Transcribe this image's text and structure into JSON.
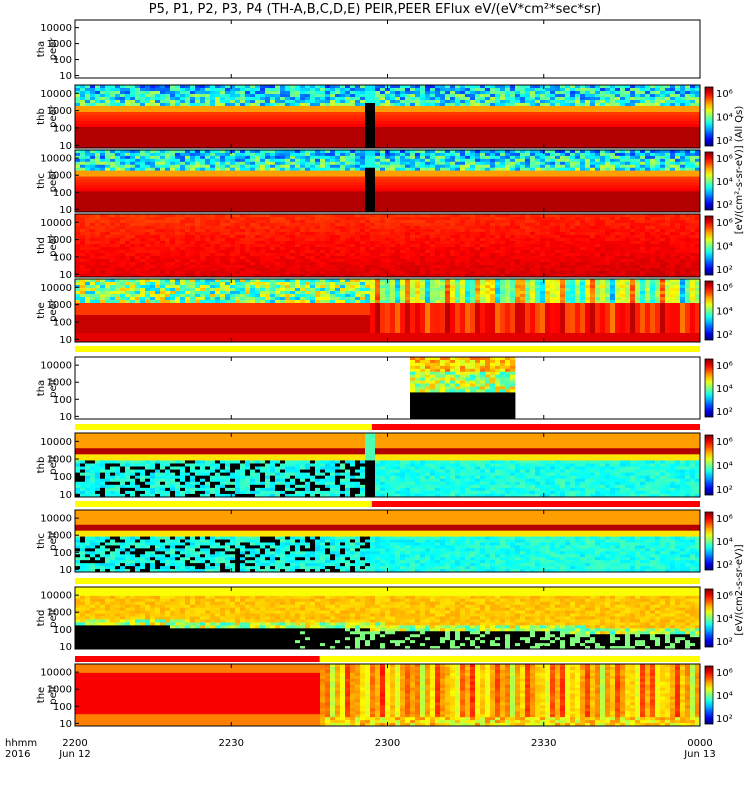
{
  "chart_data": {
    "type": "heatmap",
    "title": "P5, P1, P2, P3, P4 (TH-A,B,C,D,E) PEIR,PEER EFlux eV/(eV*cm²*sec*sr)",
    "x_axis": {
      "row1_label": "hhmm",
      "row2_label": "2016",
      "ticks": [
        {
          "x": 0,
          "hhmm": "2200",
          "date": "Jun 12"
        },
        {
          "x": 30,
          "hhmm": "2230",
          "date": ""
        },
        {
          "x": 60,
          "hhmm": "2300",
          "date": ""
        },
        {
          "x": 90,
          "hhmm": "2330",
          "date": ""
        },
        {
          "x": 120,
          "hhmm": "0000",
          "date": "Jun 13"
        }
      ],
      "xlim": [
        0,
        120
      ]
    },
    "y_axis": {
      "scale": "log",
      "ylim": [
        7,
        30000
      ],
      "ticks": [
        "10000",
        "1000",
        "100",
        "10"
      ]
    },
    "colorbar": {
      "scale": "log",
      "ticks": [
        "10⁶",
        "10⁴",
        "10²"
      ],
      "label_ions": "[eV/(cm²-s-sr-eV)] (All Qs)",
      "label_common": "[eV/(cm2-s-sr-eV)]"
    },
    "panels": [
      {
        "label": "tha\npeer",
        "kind": "empty",
        "colorbar": false
      },
      {
        "label": "thb\npeer",
        "kind": "electron",
        "dropout": [
          55.5,
          58
        ],
        "colorbar": true
      },
      {
        "label": "thc\npeer",
        "kind": "electron",
        "dropout": [
          55.5,
          58
        ],
        "colorbar": true
      },
      {
        "label": "thd\npeer",
        "kind": "hot_electron",
        "colorbar": true
      },
      {
        "label": "the\npeer",
        "kind": "dynamic_electron",
        "colorbar": true
      },
      {
        "label": "tha\npeir",
        "kind": "partial_ion",
        "data_range": [
          64,
          84
        ],
        "colorbar": true
      },
      {
        "label": "thb\npeir",
        "kind": "ion",
        "dropout": [
          55.5,
          58
        ],
        "colorbar": true
      },
      {
        "label": "thc\npeir",
        "kind": "ion",
        "colorbar": true
      },
      {
        "label": "thd\npeir",
        "kind": "ion_dense",
        "colorbar": true
      },
      {
        "label": "the\npeir",
        "kind": "ion_dynamic",
        "colorbar": true
      }
    ],
    "mode_bars": [
      {
        "after_panel": 4,
        "segments": [
          {
            "from": 0,
            "to": 120,
            "color": "#ffff00"
          }
        ]
      },
      {
        "after_panel": 5,
        "segments": [
          {
            "from": 0,
            "to": 57,
            "color": "#ffff00"
          },
          {
            "from": 57,
            "to": 120,
            "color": "#ff0000"
          }
        ]
      },
      {
        "after_panel": 6,
        "segments": [
          {
            "from": 0,
            "to": 57,
            "color": "#ffff00"
          },
          {
            "from": 57,
            "to": 120,
            "color": "#ff0000"
          }
        ]
      },
      {
        "after_panel": 7,
        "segments": [
          {
            "from": 0,
            "to": 120,
            "color": "#ffff00"
          }
        ]
      },
      {
        "after_panel": 8,
        "segments": [
          {
            "from": 0,
            "to": 47,
            "color": "#ff0000"
          },
          {
            "from": 47,
            "to": 120,
            "color": "#ffff00"
          }
        ]
      }
    ]
  }
}
